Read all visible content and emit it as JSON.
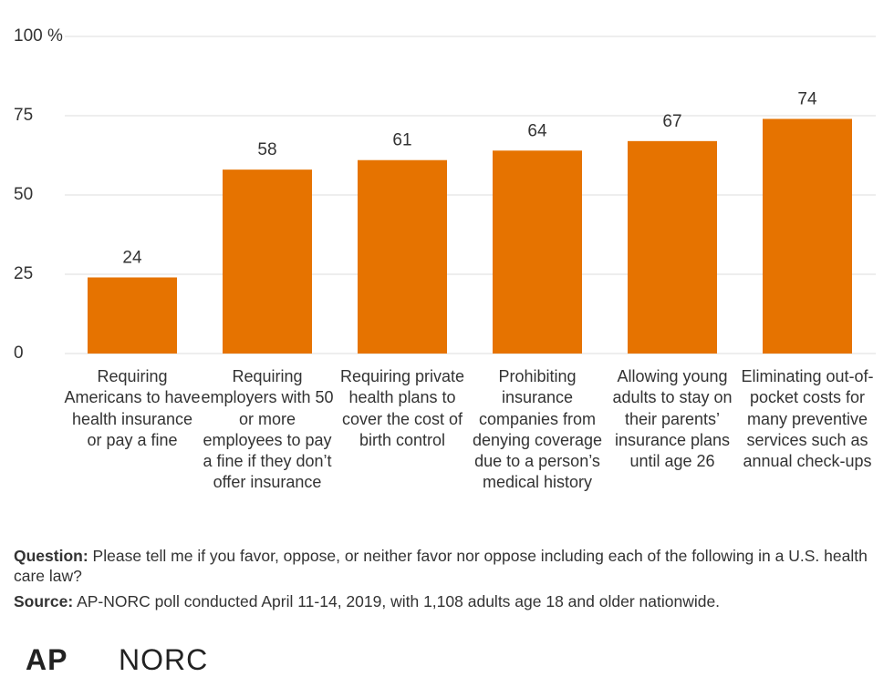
{
  "chart_data": {
    "type": "bar",
    "categories": [
      "Requiring Americans to have health insurance or pay a fine",
      "Requiring employers with 50 or more employees to pay a fine if they don’t offer insurance",
      "Requiring private health plans to cover the cost of birth control",
      "Prohibiting insurance companies from denying coverage due to a person’s medical history",
      "Allowing young adults to stay on their parents’ insurance plans until age 26",
      "Eliminating out-of-pocket costs for many preventive services such as annual check-ups"
    ],
    "values": [
      24,
      58,
      61,
      64,
      67,
      74
    ],
    "color": "#e67300",
    "ylim": [
      0,
      100
    ],
    "yticks": [
      0,
      25,
      50,
      75,
      {
        "value": 100,
        "label": "100 %"
      }
    ],
    "grid": true
  },
  "footer": {
    "question_label": "Question:",
    "question": "Please tell me if you favor, oppose, or neither favor nor oppose including each of the following in a U.S. health care law?",
    "source_label": "Source:",
    "source": "AP-NORC poll conducted April 11-14, 2019, with 1,108 adults age 18 and older nationwide.",
    "logo_left": "AP",
    "logo_right": "NORC"
  }
}
